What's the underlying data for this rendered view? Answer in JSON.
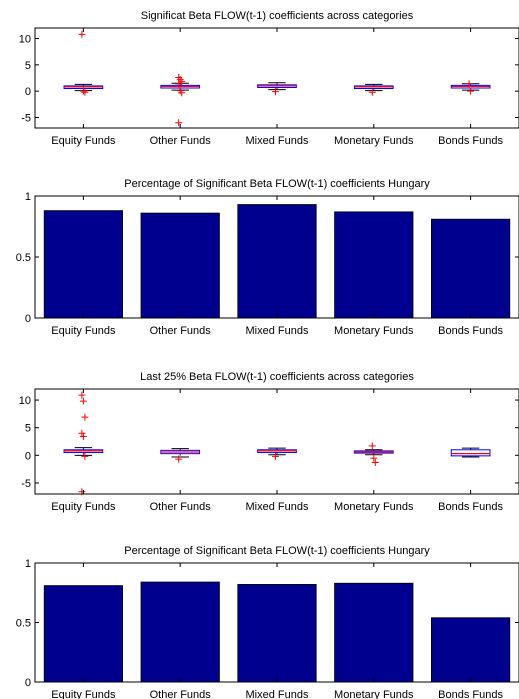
{
  "chart_data": [
    {
      "type": "box",
      "title": "Significat Beta FLOW(t-1) coefficients  across categories",
      "categories": [
        "Equity Funds",
        "Other Funds",
        "Mixed Funds",
        "Monetary Funds",
        "Bonds Funds"
      ],
      "ylim": [
        -7,
        12
      ],
      "yticks": [
        -5,
        0,
        5,
        10
      ],
      "grid": false,
      "boxes": [
        {
          "q1": 0.5,
          "median": 0.8,
          "q3": 1.0,
          "whisker_low": 0.1,
          "whisker_high": 1.3,
          "outliers": [
            10.8,
            0.0,
            -0.2
          ]
        },
        {
          "q1": 0.6,
          "median": 0.9,
          "q3": 1.1,
          "whisker_low": 0.2,
          "whisker_high": 1.5,
          "outliers": [
            2.6,
            2.2,
            1.8,
            1.4,
            0.1,
            -0.3,
            -6.0
          ]
        },
        {
          "q1": 0.7,
          "median": 1.0,
          "q3": 1.2,
          "whisker_low": 0.3,
          "whisker_high": 1.6,
          "outliers": [
            -0.1
          ]
        },
        {
          "q1": 0.5,
          "median": 0.8,
          "q3": 1.0,
          "whisker_low": 0.1,
          "whisker_high": 1.3,
          "outliers": [
            -0.2
          ]
        },
        {
          "q1": 0.6,
          "median": 0.9,
          "q3": 1.1,
          "whisker_low": 0.2,
          "whisker_high": 1.4,
          "outliers": [
            1.4,
            0.0
          ]
        }
      ]
    },
    {
      "type": "bar",
      "title": "Percentage of Significant Beta FLOW(t-1) coefficients Hungary",
      "categories": [
        "Equity Funds",
        "Other Funds",
        "Mixed Funds",
        "Monetary Funds",
        "Bonds Funds"
      ],
      "values": [
        0.88,
        0.86,
        0.93,
        0.87,
        0.81
      ],
      "ylim": [
        0,
        1
      ],
      "yticks": [
        0,
        0.5,
        1
      ],
      "grid": false,
      "color": "#00008f"
    },
    {
      "type": "box",
      "title": "Last 25% Beta FLOW(t-1) coefficients  across categories",
      "categories": [
        "Equity Funds",
        "Other Funds",
        "Mixed Funds",
        "Monetary Funds",
        "Bonds Funds"
      ],
      "ylim": [
        -7,
        12
      ],
      "yticks": [
        -5,
        0,
        5,
        10
      ],
      "grid": false,
      "boxes": [
        {
          "q1": 0.5,
          "median": 0.8,
          "q3": 1.0,
          "whisker_low": 0.0,
          "whisker_high": 1.4,
          "outliers": [
            10.9,
            9.8,
            6.9,
            4.0,
            3.4,
            -0.2,
            -6.6
          ]
        },
        {
          "q1": 0.3,
          "median": 0.6,
          "q3": 0.9,
          "whisker_low": -0.3,
          "whisker_high": 1.2,
          "outliers": [
            -0.7
          ]
        },
        {
          "q1": 0.5,
          "median": 0.8,
          "q3": 1.0,
          "whisker_low": 0.1,
          "whisker_high": 1.3,
          "outliers": [
            -0.2
          ]
        },
        {
          "q1": 0.4,
          "median": 0.6,
          "q3": 0.8,
          "whisker_low": 0.1,
          "whisker_high": 1.0,
          "outliers": [
            1.7,
            -0.5,
            -1.3
          ]
        },
        {
          "q1": -0.1,
          "median": 0.3,
          "q3": 1.0,
          "whisker_low": -0.3,
          "whisker_high": 1.3,
          "outliers": []
        }
      ]
    },
    {
      "type": "bar",
      "title": "Percentage of Significant Beta FLOW(t-1) coefficients Hungary",
      "categories": [
        "Equity Funds",
        "Other Funds",
        "Mixed Funds",
        "Monetary Funds",
        "Bonds Funds"
      ],
      "values": [
        0.81,
        0.84,
        0.82,
        0.83,
        0.54
      ],
      "ylim": [
        0,
        1
      ],
      "yticks": [
        0,
        0.5,
        1
      ],
      "grid": false,
      "color": "#00008f"
    }
  ]
}
